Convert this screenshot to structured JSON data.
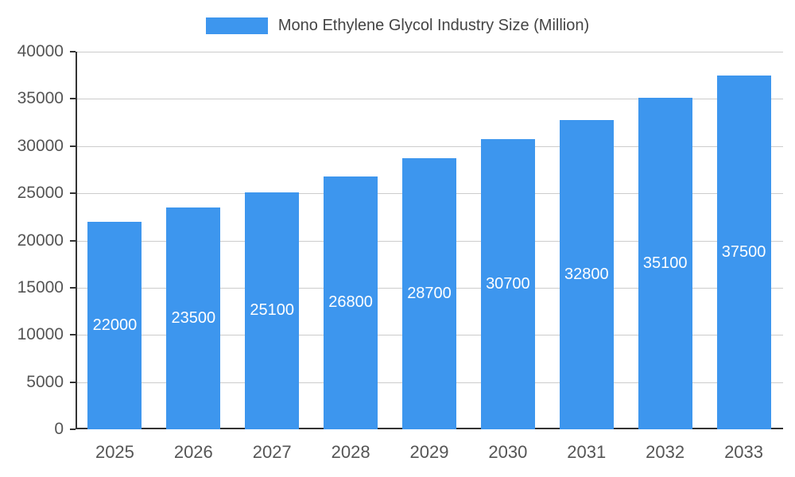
{
  "legend": {
    "label": "Mono Ethylene Glycol Industry Size (Million)"
  },
  "chart_data": {
    "type": "bar",
    "title": "Mono Ethylene Glycol Industry Size (Million)",
    "categories": [
      "2025",
      "2026",
      "2027",
      "2028",
      "2029",
      "2030",
      "2031",
      "2032",
      "2033"
    ],
    "values": [
      22000,
      23500,
      25100,
      26800,
      28700,
      30700,
      32800,
      35100,
      37500
    ],
    "value_labels": [
      "22000",
      "23500",
      "25100",
      "26800",
      "28700",
      "30700",
      "32800",
      "35100",
      "37500"
    ],
    "xlabel": "",
    "ylabel": "",
    "ylim": [
      0,
      40000
    ],
    "ytick_step": 5000,
    "ytick_labels": [
      "0",
      "5000",
      "10000",
      "15000",
      "20000",
      "25000",
      "30000",
      "35000",
      "40000"
    ],
    "grid": true,
    "legend_position": "top",
    "colors": {
      "bar": "#3d96ee",
      "value_label": "#ffffff",
      "gridline": "#cccccc",
      "axis_line": "#333333",
      "tick_label": "#555555",
      "legend_text": "#444444"
    }
  }
}
